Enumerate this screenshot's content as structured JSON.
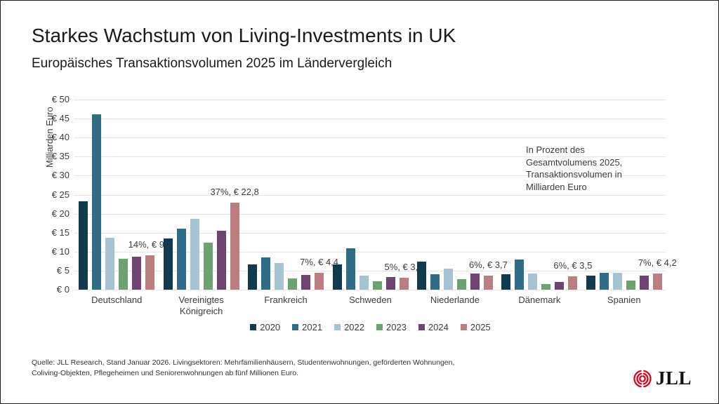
{
  "header": {
    "title": "Starkes Wachstum von Living-Investments in UK",
    "subtitle": "Europäisches Transaktionsvolumen 2025 im Ländervergleich"
  },
  "chart_data": {
    "type": "bar",
    "title": "Starkes Wachstum von Living-Investments in UK",
    "subtitle": "Europäisches Transaktionsvolumen 2025 im Ländervergleich",
    "ylabel": "Milliarden Euro",
    "xlabel": "",
    "ylim": [
      0,
      50
    ],
    "y_tick_step": 5,
    "y_ticks": [
      "€ 0",
      "€ 5",
      "€ 10",
      "€ 15",
      "€ 20",
      "€ 25",
      "€ 30",
      "€ 35",
      "€ 40",
      "€ 45",
      "€ 50"
    ],
    "grid": true,
    "legend_position": "bottom",
    "categories": [
      "Deutschland",
      "Vereinigtes Königreich",
      "Frankreich",
      "Schweden",
      "Niederlande",
      "Dänemark",
      "Spanien"
    ],
    "series": [
      {
        "name": "2020",
        "color": "#103b4f",
        "values": [
          23.2,
          13.4,
          6.6,
          6.6,
          7.3,
          4.1,
          3.6
        ]
      },
      {
        "name": "2021",
        "color": "#2e6c88",
        "values": [
          46.2,
          16.0,
          8.5,
          10.8,
          4.0,
          7.9,
          4.4
        ]
      },
      {
        "name": "2022",
        "color": "#a6c3d2",
        "values": [
          13.6,
          18.6,
          7.1,
          3.7,
          5.6,
          4.2,
          4.4
        ]
      },
      {
        "name": "2023",
        "color": "#6ba36e",
        "values": [
          8.2,
          12.3,
          2.9,
          2.2,
          2.8,
          1.5,
          2.4
        ]
      },
      {
        "name": "2024",
        "color": "#6f4473",
        "values": [
          8.7,
          15.5,
          3.9,
          3.4,
          4.3,
          2.1,
          3.6
        ]
      },
      {
        "name": "2025",
        "color": "#bc7d81",
        "values": [
          9.0,
          22.8,
          4.4,
          3.1,
          3.7,
          3.5,
          4.2
        ]
      }
    ],
    "value_labels_2025": [
      "14%, € 9,0",
      "37%, € 22,8",
      "7%, € 4,4",
      "5%, € 3,1",
      "6%, € 3,7",
      "6%, € 3,5",
      "7%, € 4,2"
    ],
    "annotation": "In Prozent des\nGesamtvolumens 2025,\nTransaktionsvolumen in\nMilliarden Euro"
  },
  "annotation": {
    "text": "In Prozent des\nGesamtvolumens 2025,\nTransaktionsvolumen in\nMilliarden Euro"
  },
  "footer": {
    "source": "Quelle: JLL Research, Stand Januar 2026. Livingsektoren: Mehrfamilienhäusern, Studentenwohnungen, geförderten Wohnungen,\nColiving-Objekten, Pflegeheimen und Seniorenwohnungen ab fünf Millionen Euro."
  },
  "logo": {
    "text": "JLL",
    "mark_color": "#e2001a"
  }
}
